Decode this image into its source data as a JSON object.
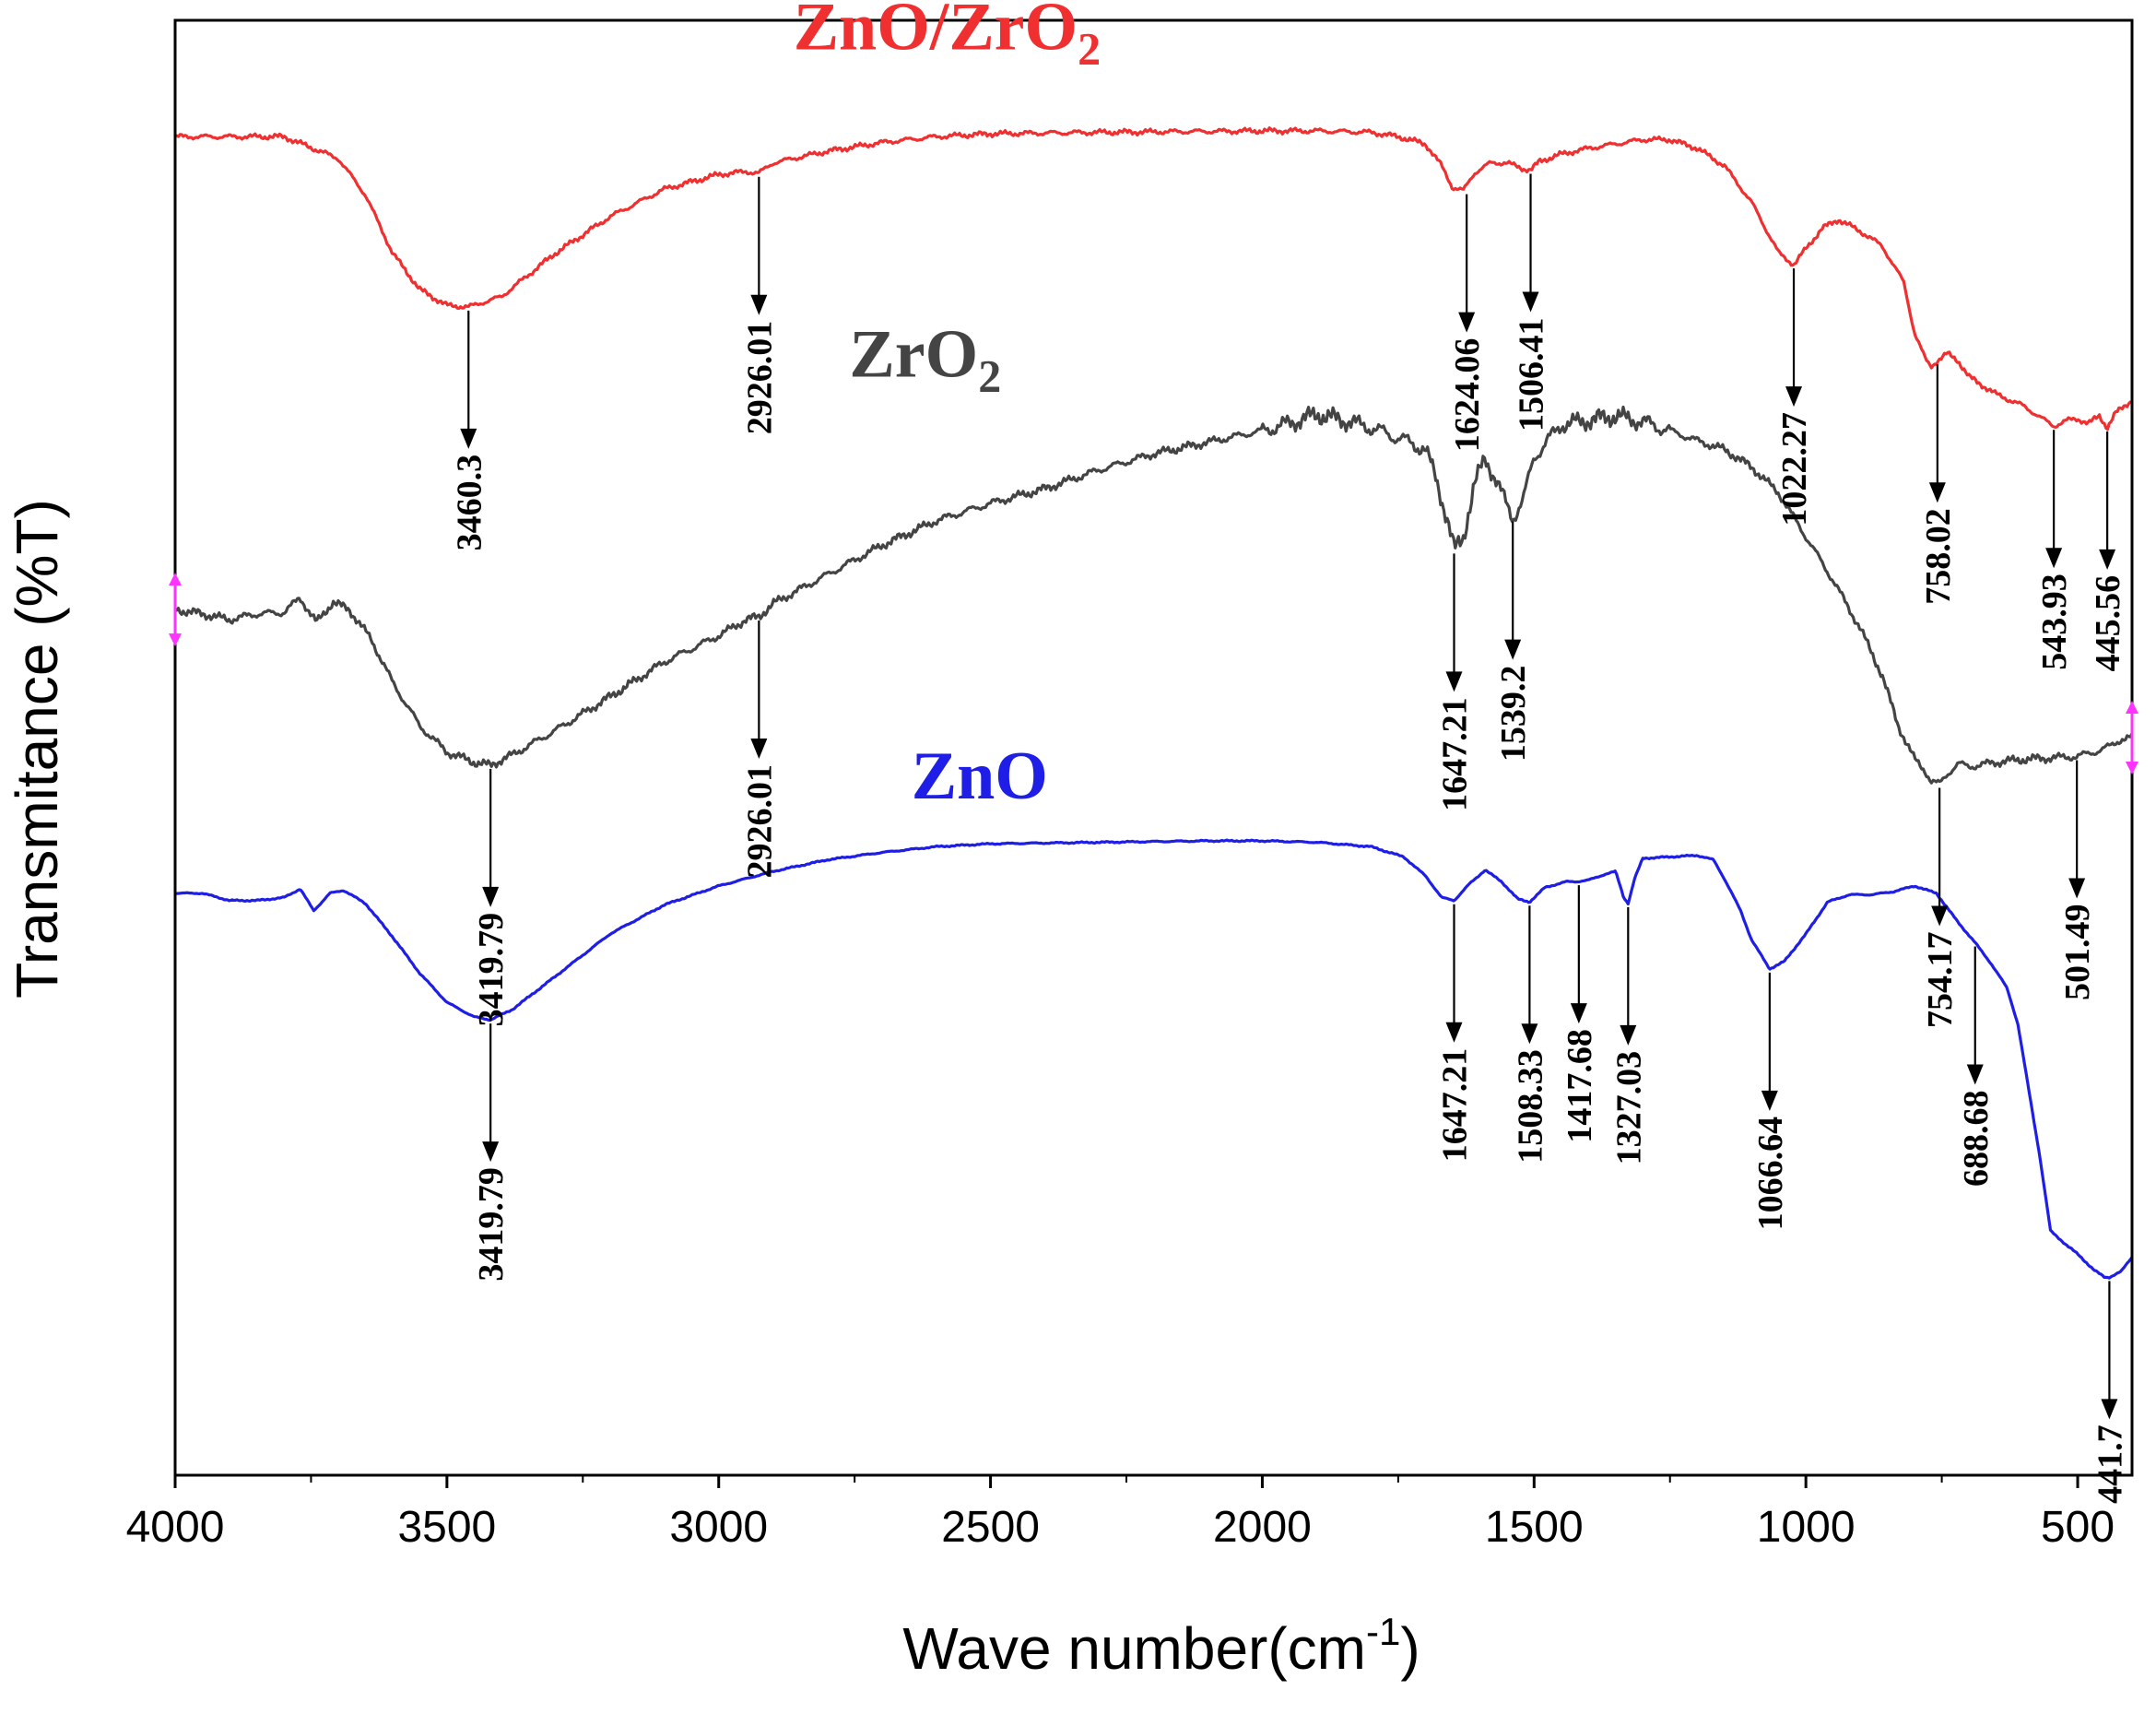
{
  "chart_data": {
    "type": "line",
    "title": "",
    "xlabel": "Wave number(cm",
    "xlabel_sup": "-1",
    "xlabel_end": ")",
    "ylabel": "Transmitance (%T)",
    "xlim": [
      4000,
      400
    ],
    "ylim": [
      0,
      100
    ],
    "x_ticks": [
      4000,
      3500,
      3000,
      2500,
      2000,
      1500,
      1000,
      500
    ],
    "x_tick_labels": [
      "4000",
      "3500",
      "3000",
      "2500",
      "2000",
      "1500",
      "1000",
      "500"
    ],
    "colors": {
      "ZnO/ZrO2": "#f03030",
      "ZrO2": "#444444",
      "ZnO": "#1e1ee6",
      "marker": "#ff33ff"
    },
    "series": [
      {
        "name": "ZnO/ZrO2",
        "label_main": "ZnO/ZrO",
        "label_sub": "2",
        "color": "#f03030",
        "points": [
          [
            4000,
            92
          ],
          [
            3900,
            92
          ],
          [
            3800,
            92
          ],
          [
            3700,
            90.5
          ],
          [
            3650,
            88
          ],
          [
            3600,
            84
          ],
          [
            3550,
            81.5
          ],
          [
            3500,
            80.4
          ],
          [
            3460,
            80.3
          ],
          [
            3400,
            81
          ],
          [
            3300,
            84
          ],
          [
            3200,
            86.5
          ],
          [
            3100,
            88.4
          ],
          [
            3000,
            89.4
          ],
          [
            2950,
            89.6
          ],
          [
            2926,
            89.5
          ],
          [
            2900,
            90.2
          ],
          [
            2800,
            91
          ],
          [
            2700,
            91.6
          ],
          [
            2600,
            92
          ],
          [
            2500,
            92.2
          ],
          [
            2300,
            92.3
          ],
          [
            2000,
            92.4
          ],
          [
            1900,
            92.4
          ],
          [
            1800,
            92.3
          ],
          [
            1750,
            92
          ],
          [
            1700,
            91.5
          ],
          [
            1670,
            90
          ],
          [
            1650,
            88.5
          ],
          [
            1630,
            88.3
          ],
          [
            1610,
            89.5
          ],
          [
            1580,
            90.2
          ],
          [
            1550,
            90.2
          ],
          [
            1520,
            89.8
          ],
          [
            1506,
            89.7
          ],
          [
            1490,
            90.3
          ],
          [
            1450,
            90.8
          ],
          [
            1400,
            91.2
          ],
          [
            1300,
            91.8
          ],
          [
            1250,
            91.8
          ],
          [
            1200,
            91.2
          ],
          [
            1150,
            90
          ],
          [
            1100,
            87.5
          ],
          [
            1050,
            84
          ],
          [
            1022,
            83.2
          ],
          [
            1000,
            84.3
          ],
          [
            970,
            85.7
          ],
          [
            940,
            86.3
          ],
          [
            900,
            85.5
          ],
          [
            860,
            84.5
          ],
          [
            820,
            82
          ],
          [
            800,
            78.5
          ],
          [
            780,
            76.7
          ],
          [
            770,
            76.2
          ],
          [
            758,
            76.6
          ],
          [
            740,
            77.1
          ],
          [
            720,
            76.6
          ],
          [
            700,
            75.5
          ],
          [
            650,
            74.3
          ],
          [
            600,
            73.5
          ],
          [
            560,
            72.5
          ],
          [
            543.9,
            72.1
          ],
          [
            520,
            72.5
          ],
          [
            500,
            72.6
          ],
          [
            480,
            72.3
          ],
          [
            460,
            72.8
          ],
          [
            445.6,
            72
          ],
          [
            430,
            73
          ],
          [
            410,
            73.6
          ],
          [
            400,
            73.9
          ]
        ]
      },
      {
        "name": "ZrO2",
        "label_main": "ZrO",
        "label_sub": "2",
        "color": "#444444",
        "points": [
          [
            4000,
            59.5
          ],
          [
            3950,
            59.2
          ],
          [
            3900,
            58.8
          ],
          [
            3850,
            59.2
          ],
          [
            3800,
            59.3
          ],
          [
            3770,
            60.3
          ],
          [
            3740,
            58.6
          ],
          [
            3710,
            60
          ],
          [
            3680,
            59.5
          ],
          [
            3640,
            57.5
          ],
          [
            3600,
            54.5
          ],
          [
            3550,
            51.5
          ],
          [
            3500,
            49.7
          ],
          [
            3450,
            49
          ],
          [
            3420,
            48.8
          ],
          [
            3380,
            49.5
          ],
          [
            3300,
            51.2
          ],
          [
            3200,
            53.5
          ],
          [
            3100,
            55.9
          ],
          [
            3000,
            57.7
          ],
          [
            2950,
            58.8
          ],
          [
            2926,
            59
          ],
          [
            2900,
            59.9
          ],
          [
            2800,
            61.9
          ],
          [
            2700,
            63.9
          ],
          [
            2600,
            65.6
          ],
          [
            2500,
            66.8
          ],
          [
            2400,
            67.8
          ],
          [
            2300,
            69.1
          ],
          [
            2200,
            70.2
          ],
          [
            2100,
            71
          ],
          [
            2000,
            71.8
          ],
          [
            1950,
            72.3
          ],
          [
            1900,
            72.9
          ],
          [
            1850,
            72.5
          ],
          [
            1800,
            72
          ],
          [
            1750,
            71.3
          ],
          [
            1700,
            70.5
          ],
          [
            1680,
            68.5
          ],
          [
            1660,
            65.7
          ],
          [
            1647,
            63.6
          ],
          [
            1630,
            64.5
          ],
          [
            1610,
            68
          ],
          [
            1590,
            70
          ],
          [
            1560,
            67.5
          ],
          [
            1539,
            65.8
          ],
          [
            1520,
            67
          ],
          [
            1500,
            70
          ],
          [
            1450,
            72.2
          ],
          [
            1400,
            72.5
          ],
          [
            1350,
            72.8
          ],
          [
            1300,
            72.4
          ],
          [
            1250,
            71.8
          ],
          [
            1200,
            71.1
          ],
          [
            1150,
            70.5
          ],
          [
            1100,
            69.3
          ],
          [
            1050,
            67.5
          ],
          [
            1000,
            64.5
          ],
          [
            950,
            61.5
          ],
          [
            900,
            58.2
          ],
          [
            860,
            55
          ],
          [
            830,
            51.5
          ],
          [
            800,
            49.2
          ],
          [
            780,
            48.4
          ],
          [
            770,
            47.7
          ],
          [
            754.2,
            47.5
          ],
          [
            740,
            48.2
          ],
          [
            720,
            48.9
          ],
          [
            700,
            48.7
          ],
          [
            650,
            49
          ],
          [
            600,
            49.2
          ],
          [
            550,
            49.3
          ],
          [
            501.5,
            49.4
          ],
          [
            470,
            49.7
          ],
          [
            440,
            50.1
          ],
          [
            420,
            50.6
          ],
          [
            400,
            50.7
          ]
        ]
      },
      {
        "name": "ZnO",
        "label_main": "ZnO",
        "label_sub": "",
        "color": "#1e1ee6",
        "points": [
          [
            4000,
            40
          ],
          [
            3950,
            40
          ],
          [
            3900,
            39.5
          ],
          [
            3850,
            39.5
          ],
          [
            3800,
            39.7
          ],
          [
            3770,
            40.3
          ],
          [
            3745,
            38.8
          ],
          [
            3715,
            40
          ],
          [
            3690,
            40.2
          ],
          [
            3650,
            39.3
          ],
          [
            3600,
            37
          ],
          [
            3550,
            34.5
          ],
          [
            3500,
            32.5
          ],
          [
            3450,
            31.5
          ],
          [
            3420,
            31.3
          ],
          [
            3380,
            32
          ],
          [
            3300,
            34.3
          ],
          [
            3200,
            37.2
          ],
          [
            3100,
            39.2
          ],
          [
            3000,
            40.5
          ],
          [
            2900,
            41.5
          ],
          [
            2800,
            42.3
          ],
          [
            2700,
            42.8
          ],
          [
            2600,
            43.2
          ],
          [
            2500,
            43.4
          ],
          [
            2300,
            43.5
          ],
          [
            2100,
            43.6
          ],
          [
            2000,
            43.6
          ],
          [
            1900,
            43.5
          ],
          [
            1800,
            43.2
          ],
          [
            1740,
            42.5
          ],
          [
            1700,
            41.2
          ],
          [
            1670,
            39.7
          ],
          [
            1647,
            39.5
          ],
          [
            1620,
            40.6
          ],
          [
            1590,
            41.6
          ],
          [
            1560,
            40.8
          ],
          [
            1530,
            39.6
          ],
          [
            1508,
            39.4
          ],
          [
            1480,
            40.4
          ],
          [
            1440,
            40.8
          ],
          [
            1420,
            40.8
          ],
          [
            1400,
            40.9
          ],
          [
            1370,
            41.3
          ],
          [
            1350,
            41.5
          ],
          [
            1335,
            39.7
          ],
          [
            1327,
            39.3
          ],
          [
            1315,
            41
          ],
          [
            1300,
            42.4
          ],
          [
            1250,
            42.5
          ],
          [
            1200,
            42.6
          ],
          [
            1170,
            42.3
          ],
          [
            1150,
            41
          ],
          [
            1120,
            38.8
          ],
          [
            1100,
            36.8
          ],
          [
            1080,
            35.6
          ],
          [
            1066.6,
            34.8
          ],
          [
            1040,
            35.3
          ],
          [
            1000,
            37.2
          ],
          [
            960,
            39.4
          ],
          [
            920,
            39.9
          ],
          [
            880,
            39.9
          ],
          [
            840,
            40.1
          ],
          [
            800,
            40.5
          ],
          [
            760,
            40
          ],
          [
            720,
            38
          ],
          [
            688.7,
            36.6
          ],
          [
            660,
            35.2
          ],
          [
            630,
            33.5
          ],
          [
            610,
            31
          ],
          [
            590,
            26.5
          ],
          [
            570,
            22
          ],
          [
            550,
            16.8
          ],
          [
            520,
            15.8
          ],
          [
            500,
            15.2
          ],
          [
            470,
            14.1
          ],
          [
            450,
            13.6
          ],
          [
            441.7,
            13.6
          ],
          [
            420,
            14
          ],
          [
            400,
            15
          ]
        ]
      }
    ],
    "series_labels": [
      {
        "series": "ZnO/ZrO2",
        "x": 2580,
        "y": 98
      },
      {
        "series": "ZrO2",
        "x": 2620,
        "y": 75.5
      },
      {
        "series": "ZnO",
        "x": 2520,
        "y": 46.5
      }
    ],
    "annotations": [
      {
        "text": "3460.3",
        "series": "ZnO/ZrO2",
        "x": 3460.3,
        "y": 80.3
      },
      {
        "text": "2926.01",
        "series": "ZnO/ZrO2",
        "x": 2926.01,
        "y": 89.5
      },
      {
        "text": "1624.06",
        "series": "ZnO/ZrO2",
        "x": 1624.06,
        "y": 88.3
      },
      {
        "text": "1506.41",
        "series": "ZnO/ZrO2",
        "x": 1506.41,
        "y": 89.7
      },
      {
        "text": "1022.27",
        "series": "ZnO/ZrO2",
        "x": 1022.27,
        "y": 83.2
      },
      {
        "text": "758.02",
        "series": "ZnO/ZrO2",
        "x": 758.02,
        "y": 76.6
      },
      {
        "text": "543.93",
        "series": "ZnO/ZrO2",
        "x": 543.93,
        "y": 72.1
      },
      {
        "text": "445.56",
        "series": "ZnO/ZrO2",
        "x": 445.56,
        "y": 72.0
      },
      {
        "text": "3419.79",
        "series": "ZrO2",
        "x": 3419.79,
        "y": 48.8
      },
      {
        "text": "2926.01",
        "series": "ZrO2",
        "x": 2926.01,
        "y": 59.0
      },
      {
        "text": "1647.21",
        "series": "ZrO2",
        "x": 1647.21,
        "y": 63.6
      },
      {
        "text": "1539.2",
        "series": "ZrO2",
        "x": 1539.2,
        "y": 65.8
      },
      {
        "text": "754.17",
        "series": "ZrO2",
        "x": 754.17,
        "y": 47.5
      },
      {
        "text": "501.49",
        "series": "ZrO2",
        "x": 501.49,
        "y": 49.4
      },
      {
        "text": "3419.79",
        "series": "ZnO",
        "x": 3419.79,
        "y": 31.3
      },
      {
        "text": "1647.21",
        "series": "ZnO",
        "x": 1647.21,
        "y": 39.5
      },
      {
        "text": "1508.33",
        "series": "ZnO",
        "x": 1508.33,
        "y": 39.4
      },
      {
        "text": "1417.68",
        "series": "ZnO",
        "x": 1417.68,
        "y": 40.8
      },
      {
        "text": "1327.03",
        "series": "ZnO",
        "x": 1327.03,
        "y": 39.3
      },
      {
        "text": "1066.64",
        "series": "ZnO",
        "x": 1066.64,
        "y": 34.8
      },
      {
        "text": "688.68",
        "series": "ZnO",
        "x": 688.68,
        "y": 36.6
      },
      {
        "text": "441.7",
        "series": "ZnO",
        "x": 441.7,
        "y": 13.6
      }
    ],
    "markers": [
      {
        "x": 4000,
        "y": 59.5
      },
      {
        "x": 400,
        "y": 50.7
      }
    ]
  }
}
